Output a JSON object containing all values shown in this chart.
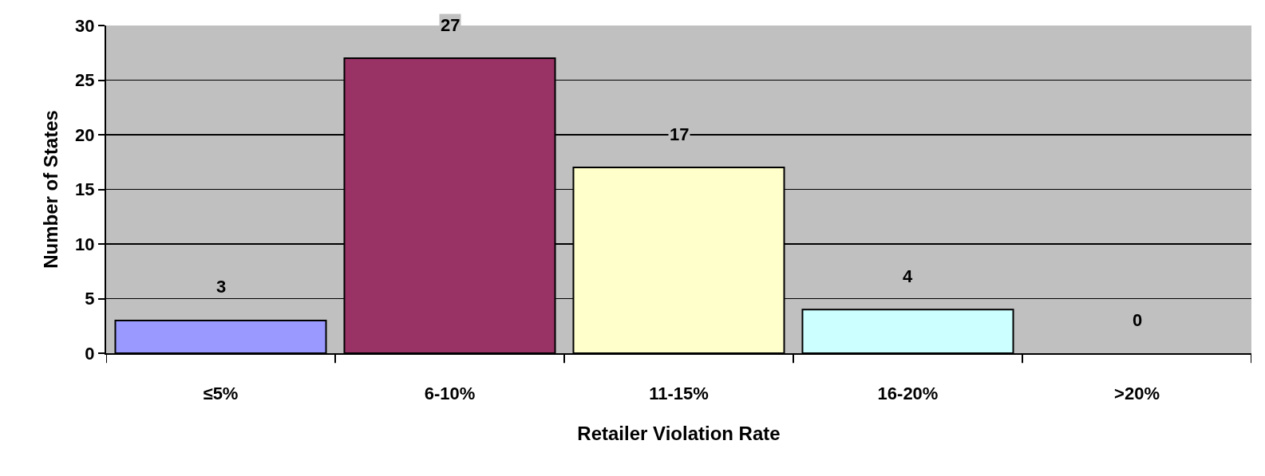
{
  "chart_data": {
    "type": "bar",
    "xlabel": "Retailer Violation Rate",
    "ylabel": "Number of States",
    "categories": [
      "≤5%",
      "6-10%",
      "11-15%",
      "16-20%",
      ">20%"
    ],
    "values": [
      3,
      27,
      17,
      4,
      0
    ],
    "colors": [
      "#9999ff",
      "#993366",
      "#ffffcc",
      "#ccffff",
      "#660066"
    ],
    "ylim": [
      0,
      30
    ],
    "yticks": [
      0,
      5,
      10,
      15,
      20,
      25,
      30
    ],
    "grid": "y",
    "data_labels": true
  }
}
